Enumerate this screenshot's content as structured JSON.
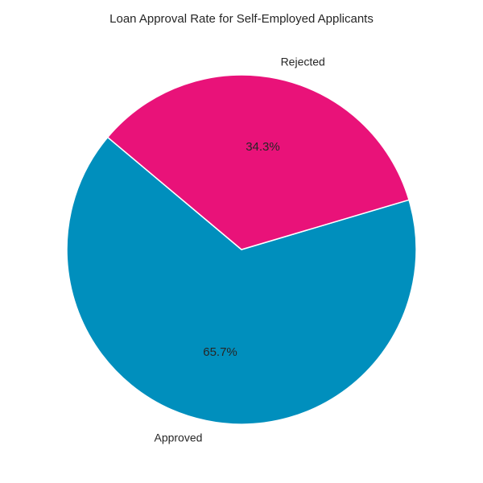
{
  "chart_data": {
    "type": "pie",
    "title": "Loan Approval Rate for Self-Employed Applicants",
    "categories": [
      "Approved",
      "Rejected"
    ],
    "values": [
      65.7,
      34.3
    ],
    "percent_labels": [
      "65.7%",
      "34.3%"
    ],
    "colors": [
      "#008fbd",
      "#e91279"
    ],
    "legend": "none"
  }
}
